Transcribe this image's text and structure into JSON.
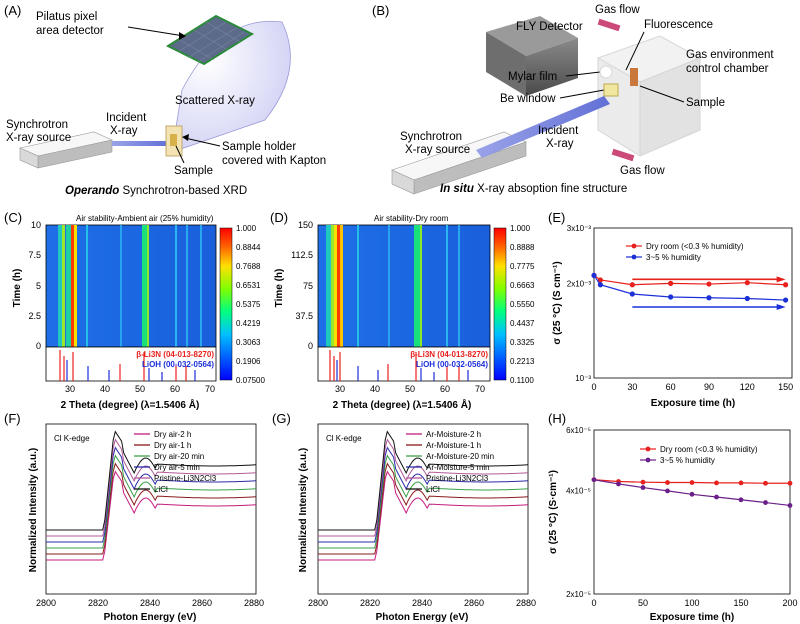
{
  "panels": {
    "A": {
      "letter": "(A)",
      "detector": "Pilatus pixel area detector",
      "detector_line1": "Pilatus pixel",
      "detector_line2": "area detector",
      "scattered": "Scattered X-ray",
      "source_line1": "Synchrotron",
      "source_line2": "X-ray source",
      "incident_line1": "Incident",
      "incident_line2": "X-ray",
      "holder_line1": "Sample holder",
      "holder_line2": "covered with Kapton",
      "sample": "Sample",
      "caption_italic": "Operando",
      "caption_rest": " Synchrotron-based XRD"
    },
    "B": {
      "letter": "(B)",
      "fly": "FLY Detector",
      "gas_flow_top": "Gas flow",
      "fluorescence": "Fluorescence",
      "chamber_line1": "Gas environment",
      "chamber_line2": "control chamber",
      "mylar": "Mylar film",
      "be_window": "Be window",
      "sample": "Sample",
      "source_line1": "Synchrotron",
      "source_line2": "X-ray source",
      "incident_line1": "Incident",
      "incident_line2": "X-ray",
      "gas_flow_bottom": "Gas flow",
      "caption_italic": "In situ",
      "caption_rest": " X-ray absoption fine structure"
    },
    "C": {
      "letter": "(C)",
      "title": "Air stability-Ambient air (25% humidity)",
      "ylabel": "Time (h)",
      "xlabel": "2 Theta (degree) (λ=1.5406 Å)",
      "yticks": [
        "10",
        "7.5",
        "5",
        "2.5",
        "0"
      ],
      "xticks": [
        "30",
        "40",
        "50",
        "60",
        "70"
      ],
      "ref1": "β-Li3N (04-013-8270)",
      "ref2": "LiOH (00-032-0564)",
      "colorbar": [
        "1.000",
        "0.8844",
        "0.7688",
        "0.6531",
        "0.5375",
        "0.4219",
        "0.3063",
        "0.1906",
        "0.07500"
      ]
    },
    "D": {
      "letter": "(D)",
      "title": "Air stability-Dry room",
      "ylabel": "Time (h)",
      "xlabel": "2 Theta (degree) (λ=1.5406 Å)",
      "yticks": [
        "150",
        "112.5",
        "75",
        "37.5",
        "0"
      ],
      "xticks": [
        "30",
        "40",
        "50",
        "60",
        "70"
      ],
      "ref1": "β-Li3N (04-013-8270)",
      "ref2": "LiOH (00-032-0564)",
      "colorbar": [
        "1.000",
        "0.8888",
        "0.7775",
        "0.6663",
        "0.5550",
        "0.4437",
        "0.3325",
        "0.2213",
        "0.1100"
      ]
    },
    "E": {
      "letter": "(E)"
    },
    "F": {
      "letter": "(F)",
      "edge": "Cl K-edge",
      "ylabel": "Normalized Intensity (a.u.)",
      "xlabel": "Photon Energy (eV)",
      "xticks": [
        "2800",
        "2820",
        "2840",
        "2860",
        "2880"
      ],
      "legend": [
        "Dry air-2 h",
        "Dry air-1 h",
        "Dry air-20 min",
        "Dry air-5 min",
        "Pristine-Li3N2Cl3",
        "LiCl"
      ]
    },
    "G": {
      "letter": "(G)",
      "edge": "Cl K-edge",
      "ylabel": "Normalized Intensity (a.u.)",
      "xlabel": "Photon Energy (eV)",
      "xticks": [
        "2800",
        "2820",
        "2840",
        "2860",
        "2880"
      ],
      "legend": [
        "Ar-Moisture-2 h",
        "Ar-Moisture-1 h",
        "Ar-Moisture-20 min",
        "Ar-Moisture-5 min",
        "Pristine-Li3N2Cl3",
        "LiCl"
      ]
    },
    "H": {
      "letter": "(H)"
    }
  },
  "chart_data": [
    {
      "id": "E",
      "type": "line",
      "title": "",
      "xlabel": "Exposure time (h)",
      "ylabel": "σ (25 °C) (S cm⁻¹)",
      "xlim": [
        0,
        155
      ],
      "xticks": [
        "0",
        "30",
        "60",
        "90",
        "120",
        "150"
      ],
      "ylim_log": [
        0.001,
        0.003
      ],
      "yticks": [
        "3x10⁻³",
        "2x10⁻³",
        "10⁻³"
      ],
      "x": [
        0,
        5,
        30,
        60,
        90,
        120,
        150
      ],
      "series": [
        {
          "name": "Dry room (<0.3 % humidity)",
          "color": "#e8201c",
          "values": [
            0.00212,
            0.00205,
            0.00198,
            0.002,
            0.00199,
            0.00201,
            0.00198
          ]
        },
        {
          "name": "3~5 % humidity",
          "color": "#1c30d8",
          "values": [
            0.00212,
            0.00198,
            0.00185,
            0.00181,
            0.0018,
            0.00179,
            0.00177
          ]
        }
      ]
    },
    {
      "id": "H",
      "type": "line",
      "title": "",
      "xlabel": "Exposure time (h)",
      "ylabel": "σ (25 °C) (S·cm⁻¹)",
      "xlim": [
        0,
        200
      ],
      "xticks": [
        "0",
        "50",
        "100",
        "150",
        "200"
      ],
      "yticks": [
        "6x10⁻⁵",
        "4x10⁻⁵",
        "2x10⁻⁵"
      ],
      "x": [
        0,
        25,
        50,
        75,
        100,
        125,
        150,
        175,
        200
      ],
      "series": [
        {
          "name": "Dry room (<0.3 % humidity)",
          "color": "#e8201c",
          "values": [
            4.3e-05,
            4.25e-05,
            4.23e-05,
            4.22e-05,
            4.22e-05,
            4.21e-05,
            4.21e-05,
            4.2e-05,
            4.2e-05
          ]
        },
        {
          "name": "3~5 % humidity",
          "color": "#6a1f8a",
          "values": [
            4.3e-05,
            4.18e-05,
            4.08e-05,
            3.99e-05,
            3.9e-05,
            3.83e-05,
            3.76e-05,
            3.69e-05,
            3.62e-05
          ]
        }
      ]
    }
  ]
}
